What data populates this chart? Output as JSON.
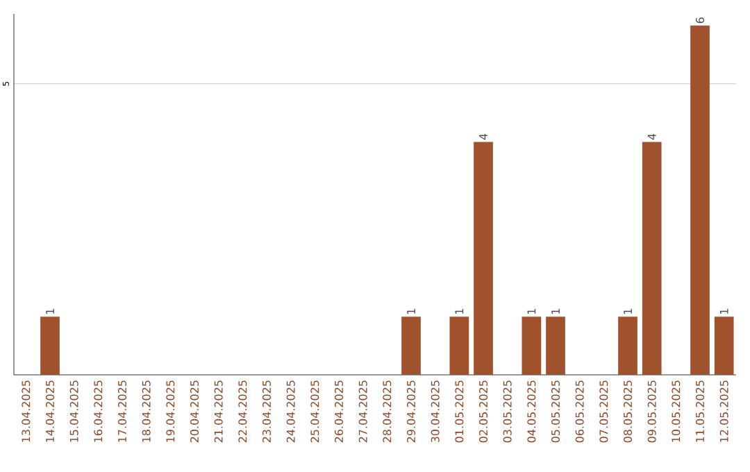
{
  "chart_data": {
    "type": "bar",
    "categories": [
      "13.04.2025",
      "14.04.2025",
      "15.04.2025",
      "16.04.2025",
      "17.04.2025",
      "18.04.2025",
      "19.04.2025",
      "20.04.2025",
      "21.04.2025",
      "22.04.2025",
      "23.04.2025",
      "24.04.2025",
      "25.04.2025",
      "26.04.2025",
      "27.04.2025",
      "28.04.2025",
      "29.04.2025",
      "30.04.2025",
      "01.05.2025",
      "02.05.2025",
      "03.05.2025",
      "04.05.2025",
      "05.05.2025",
      "06.05.2025",
      "07.05.2025",
      "08.05.2025",
      "09.05.2025",
      "10.05.2025",
      "11.05.2025",
      "12.05.2025"
    ],
    "values": [
      0,
      1,
      0,
      0,
      0,
      0,
      0,
      0,
      0,
      0,
      0,
      0,
      0,
      0,
      0,
      0,
      1,
      0,
      1,
      4,
      0,
      1,
      1,
      0,
      0,
      1,
      4,
      0,
      6,
      1
    ],
    "value_labels": [
      null,
      "1",
      null,
      null,
      null,
      null,
      null,
      null,
      null,
      null,
      null,
      null,
      null,
      null,
      null,
      null,
      "1",
      null,
      "1",
      "4",
      null,
      "1",
      "1",
      null,
      null,
      "1",
      "4",
      null,
      "6",
      "1"
    ],
    "color": "#a0522d",
    "ylim": [
      0,
      6.2
    ],
    "yticks": [
      5
    ],
    "grid": "y"
  }
}
